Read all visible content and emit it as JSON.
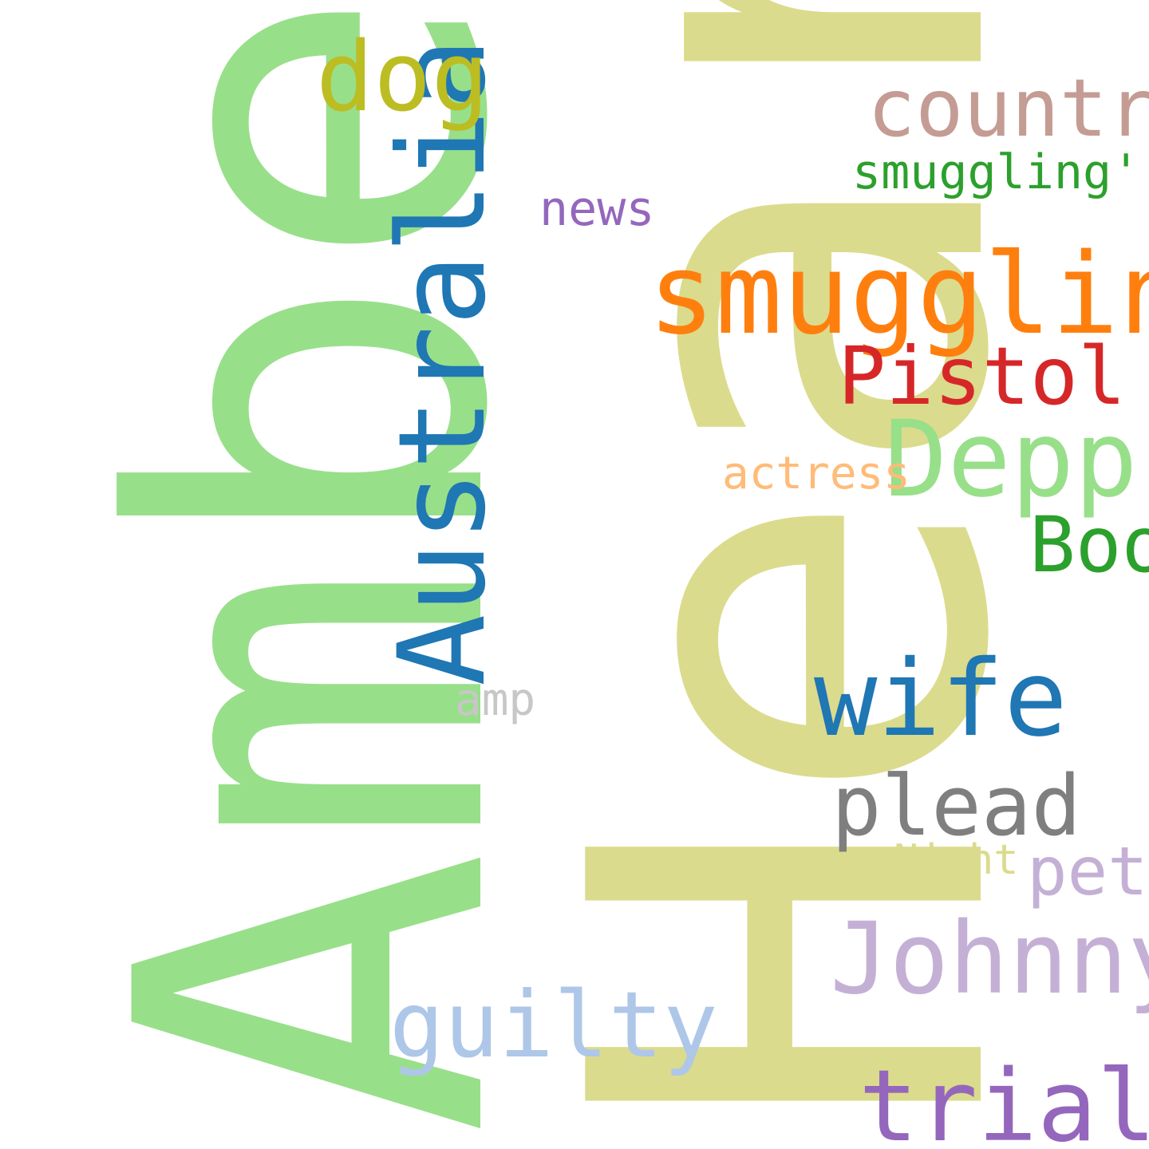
{
  "words": [
    {
      "id": "amber",
      "text": "Amber",
      "color": "#98df8a",
      "orientation": "vertical"
    },
    {
      "id": "heard",
      "text": "Heard",
      "color": "#dbdb8d",
      "orientation": "vertical"
    },
    {
      "id": "australia",
      "text": "Australia",
      "color": "#1f77b4",
      "orientation": "vertical"
    },
    {
      "id": "dog",
      "text": "dog",
      "color": "#bcbd22",
      "orientation": "horizontal"
    },
    {
      "id": "country",
      "text": "country",
      "color": "#c49c94",
      "orientation": "horizontal"
    },
    {
      "id": "smuggling2",
      "text": "smuggling'",
      "color": "#2ca02c",
      "orientation": "horizontal"
    },
    {
      "id": "news",
      "text": "news",
      "color": "#9467bd",
      "orientation": "horizontal"
    },
    {
      "id": "smuggling",
      "text": "smuggling",
      "color": "#ff7f0e",
      "orientation": "horizontal"
    },
    {
      "id": "pistol",
      "text": "Pistol",
      "color": "#d62728",
      "orientation": "horizontal"
    },
    {
      "id": "depp",
      "text": "Depp",
      "color": "#98df8a",
      "orientation": "horizontal"
    },
    {
      "id": "actress",
      "text": "actress",
      "color": "#ffbb78",
      "orientation": "horizontal"
    },
    {
      "id": "boo",
      "text": "Boo",
      "color": "#2ca02c",
      "orientation": "horizontal"
    },
    {
      "id": "wife",
      "text": "wife",
      "color": "#1f77b4",
      "orientation": "horizontal"
    },
    {
      "id": "amp",
      "text": "amp",
      "color": "#c7c7c7",
      "orientation": "horizontal"
    },
    {
      "id": "plead",
      "text": "plead",
      "color": "#7f7f7f",
      "orientation": "horizontal"
    },
    {
      "id": "night",
      "text": "Night",
      "color": "#dbdb8d",
      "orientation": "horizontal"
    },
    {
      "id": "pet",
      "text": "pet",
      "color": "#c5b0d5",
      "orientation": "horizontal"
    },
    {
      "id": "johnny",
      "text": "Johnny",
      "color": "#c5b0d5",
      "orientation": "horizontal"
    },
    {
      "id": "guilty",
      "text": "guilty",
      "color": "#aec7e8",
      "orientation": "horizontal"
    },
    {
      "id": "trial",
      "text": "trial",
      "color": "#9467bd",
      "orientation": "horizontal"
    }
  ]
}
